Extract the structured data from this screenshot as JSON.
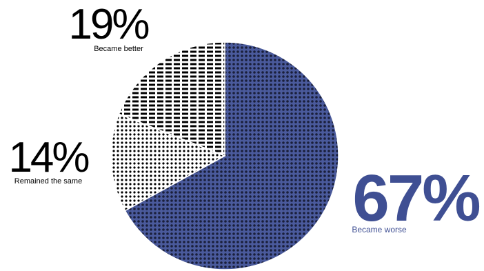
{
  "chart_data": {
    "type": "pie",
    "slices": [
      {
        "label": "Became worse",
        "value": 67,
        "value_label": "67%",
        "color": "#3f4f93",
        "pattern": "dense-dots-on-blue"
      },
      {
        "label": "Remained the same",
        "value": 14,
        "value_label": "14%",
        "color": "#000000",
        "pattern": "dots"
      },
      {
        "label": "Became better",
        "value": 19,
        "value_label": "19%",
        "color": "#000000",
        "pattern": "dashes"
      }
    ],
    "start": "12 o'clock",
    "direction": "clockwise",
    "legend": "none"
  }
}
